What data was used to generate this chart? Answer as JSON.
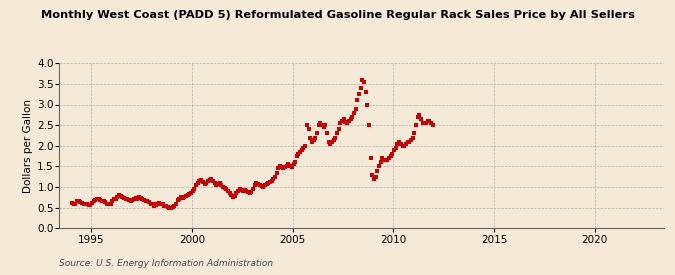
{
  "title": "Monthly West Coast (PADD 5) Reformulated Gasoline Regular Rack Sales Price by All Sellers",
  "ylabel": "Dollars per Gallon",
  "source": "Source: U.S. Energy Information Administration",
  "background_color": "#f5ead8",
  "dot_color": "#cc0000",
  "ylim": [
    0.0,
    4.0
  ],
  "yticks": [
    0.0,
    0.5,
    1.0,
    1.5,
    2.0,
    2.5,
    3.0,
    3.5,
    4.0
  ],
  "xticks": [
    1995,
    2000,
    2005,
    2010,
    2015,
    2020
  ],
  "data": [
    [
      1994,
      1,
      0.61
    ],
    [
      1994,
      2,
      0.58
    ],
    [
      1994,
      3,
      0.6
    ],
    [
      1994,
      4,
      0.65
    ],
    [
      1994,
      5,
      0.67
    ],
    [
      1994,
      6,
      0.64
    ],
    [
      1994,
      7,
      0.62
    ],
    [
      1994,
      8,
      0.6
    ],
    [
      1994,
      9,
      0.59
    ],
    [
      1994,
      10,
      0.58
    ],
    [
      1994,
      11,
      0.57
    ],
    [
      1994,
      12,
      0.56
    ],
    [
      1995,
      1,
      0.62
    ],
    [
      1995,
      2,
      0.65
    ],
    [
      1995,
      3,
      0.68
    ],
    [
      1995,
      4,
      0.72
    ],
    [
      1995,
      5,
      0.7
    ],
    [
      1995,
      6,
      0.68
    ],
    [
      1995,
      7,
      0.67
    ],
    [
      1995,
      8,
      0.65
    ],
    [
      1995,
      9,
      0.63
    ],
    [
      1995,
      10,
      0.6
    ],
    [
      1995,
      11,
      0.59
    ],
    [
      1995,
      12,
      0.58
    ],
    [
      1996,
      1,
      0.65
    ],
    [
      1996,
      2,
      0.7
    ],
    [
      1996,
      3,
      0.72
    ],
    [
      1996,
      4,
      0.75
    ],
    [
      1996,
      5,
      0.8
    ],
    [
      1996,
      6,
      0.78
    ],
    [
      1996,
      7,
      0.75
    ],
    [
      1996,
      8,
      0.73
    ],
    [
      1996,
      9,
      0.72
    ],
    [
      1996,
      10,
      0.7
    ],
    [
      1996,
      11,
      0.68
    ],
    [
      1996,
      12,
      0.65
    ],
    [
      1997,
      1,
      0.68
    ],
    [
      1997,
      2,
      0.7
    ],
    [
      1997,
      3,
      0.73
    ],
    [
      1997,
      4,
      0.72
    ],
    [
      1997,
      5,
      0.75
    ],
    [
      1997,
      6,
      0.73
    ],
    [
      1997,
      7,
      0.7
    ],
    [
      1997,
      8,
      0.68
    ],
    [
      1997,
      9,
      0.67
    ],
    [
      1997,
      10,
      0.65
    ],
    [
      1997,
      11,
      0.63
    ],
    [
      1997,
      12,
      0.6
    ],
    [
      1998,
      1,
      0.58
    ],
    [
      1998,
      2,
      0.55
    ],
    [
      1998,
      3,
      0.57
    ],
    [
      1998,
      4,
      0.6
    ],
    [
      1998,
      5,
      0.62
    ],
    [
      1998,
      6,
      0.6
    ],
    [
      1998,
      7,
      0.58
    ],
    [
      1998,
      8,
      0.55
    ],
    [
      1998,
      9,
      0.53
    ],
    [
      1998,
      10,
      0.51
    ],
    [
      1998,
      11,
      0.5
    ],
    [
      1998,
      12,
      0.49
    ],
    [
      1999,
      1,
      0.52
    ],
    [
      1999,
      2,
      0.55
    ],
    [
      1999,
      3,
      0.6
    ],
    [
      1999,
      4,
      0.68
    ],
    [
      1999,
      5,
      0.72
    ],
    [
      1999,
      6,
      0.75
    ],
    [
      1999,
      7,
      0.73
    ],
    [
      1999,
      8,
      0.75
    ],
    [
      1999,
      9,
      0.78
    ],
    [
      1999,
      10,
      0.8
    ],
    [
      1999,
      11,
      0.82
    ],
    [
      1999,
      12,
      0.85
    ],
    [
      2000,
      1,
      0.9
    ],
    [
      2000,
      2,
      0.95
    ],
    [
      2000,
      3,
      1.05
    ],
    [
      2000,
      4,
      1.1
    ],
    [
      2000,
      5,
      1.15
    ],
    [
      2000,
      6,
      1.18
    ],
    [
      2000,
      7,
      1.12
    ],
    [
      2000,
      8,
      1.08
    ],
    [
      2000,
      9,
      1.1
    ],
    [
      2000,
      10,
      1.15
    ],
    [
      2000,
      11,
      1.18
    ],
    [
      2000,
      12,
      1.2
    ],
    [
      2001,
      1,
      1.15
    ],
    [
      2001,
      2,
      1.1
    ],
    [
      2001,
      3,
      1.05
    ],
    [
      2001,
      4,
      1.08
    ],
    [
      2001,
      5,
      1.1
    ],
    [
      2001,
      6,
      1.05
    ],
    [
      2001,
      7,
      1.0
    ],
    [
      2001,
      8,
      0.98
    ],
    [
      2001,
      9,
      0.95
    ],
    [
      2001,
      10,
      0.9
    ],
    [
      2001,
      11,
      0.85
    ],
    [
      2001,
      12,
      0.8
    ],
    [
      2002,
      1,
      0.75
    ],
    [
      2002,
      2,
      0.78
    ],
    [
      2002,
      3,
      0.85
    ],
    [
      2002,
      4,
      0.9
    ],
    [
      2002,
      5,
      0.95
    ],
    [
      2002,
      6,
      0.92
    ],
    [
      2002,
      7,
      0.9
    ],
    [
      2002,
      8,
      0.92
    ],
    [
      2002,
      9,
      0.9
    ],
    [
      2002,
      10,
      0.88
    ],
    [
      2002,
      11,
      0.85
    ],
    [
      2002,
      12,
      0.88
    ],
    [
      2003,
      1,
      0.95
    ],
    [
      2003,
      2,
      1.05
    ],
    [
      2003,
      3,
      1.1
    ],
    [
      2003,
      4,
      1.08
    ],
    [
      2003,
      5,
      1.05
    ],
    [
      2003,
      6,
      1.02
    ],
    [
      2003,
      7,
      1.0
    ],
    [
      2003,
      8,
      1.05
    ],
    [
      2003,
      9,
      1.08
    ],
    [
      2003,
      10,
      1.1
    ],
    [
      2003,
      11,
      1.12
    ],
    [
      2003,
      12,
      1.15
    ],
    [
      2004,
      1,
      1.2
    ],
    [
      2004,
      2,
      1.25
    ],
    [
      2004,
      3,
      1.35
    ],
    [
      2004,
      4,
      1.45
    ],
    [
      2004,
      5,
      1.5
    ],
    [
      2004,
      6,
      1.48
    ],
    [
      2004,
      7,
      1.45
    ],
    [
      2004,
      8,
      1.48
    ],
    [
      2004,
      9,
      1.52
    ],
    [
      2004,
      10,
      1.55
    ],
    [
      2004,
      11,
      1.5
    ],
    [
      2004,
      12,
      1.48
    ],
    [
      2005,
      1,
      1.55
    ],
    [
      2005,
      2,
      1.6
    ],
    [
      2005,
      3,
      1.75
    ],
    [
      2005,
      4,
      1.8
    ],
    [
      2005,
      5,
      1.85
    ],
    [
      2005,
      6,
      1.9
    ],
    [
      2005,
      7,
      1.95
    ],
    [
      2005,
      8,
      2.0
    ],
    [
      2005,
      9,
      2.5
    ],
    [
      2005,
      10,
      2.4
    ],
    [
      2005,
      11,
      2.2
    ],
    [
      2005,
      12,
      2.1
    ],
    [
      2006,
      1,
      2.15
    ],
    [
      2006,
      2,
      2.2
    ],
    [
      2006,
      3,
      2.3
    ],
    [
      2006,
      4,
      2.5
    ],
    [
      2006,
      5,
      2.55
    ],
    [
      2006,
      6,
      2.5
    ],
    [
      2006,
      7,
      2.45
    ],
    [
      2006,
      8,
      2.5
    ],
    [
      2006,
      9,
      2.3
    ],
    [
      2006,
      10,
      2.1
    ],
    [
      2006,
      11,
      2.05
    ],
    [
      2006,
      12,
      2.1
    ],
    [
      2007,
      1,
      2.15
    ],
    [
      2007,
      2,
      2.2
    ],
    [
      2007,
      3,
      2.3
    ],
    [
      2007,
      4,
      2.4
    ],
    [
      2007,
      5,
      2.55
    ],
    [
      2007,
      6,
      2.6
    ],
    [
      2007,
      7,
      2.65
    ],
    [
      2007,
      8,
      2.58
    ],
    [
      2007,
      9,
      2.55
    ],
    [
      2007,
      10,
      2.6
    ],
    [
      2007,
      11,
      2.65
    ],
    [
      2007,
      12,
      2.7
    ],
    [
      2008,
      1,
      2.8
    ],
    [
      2008,
      2,
      2.9
    ],
    [
      2008,
      3,
      3.1
    ],
    [
      2008,
      4,
      3.25
    ],
    [
      2008,
      5,
      3.4
    ],
    [
      2008,
      6,
      3.6
    ],
    [
      2008,
      7,
      3.55
    ],
    [
      2008,
      8,
      3.3
    ],
    [
      2008,
      9,
      3.0
    ],
    [
      2008,
      10,
      2.5
    ],
    [
      2008,
      11,
      1.7
    ],
    [
      2008,
      12,
      1.3
    ],
    [
      2009,
      1,
      1.2
    ],
    [
      2009,
      2,
      1.25
    ],
    [
      2009,
      3,
      1.4
    ],
    [
      2009,
      4,
      1.5
    ],
    [
      2009,
      5,
      1.6
    ],
    [
      2009,
      6,
      1.7
    ],
    [
      2009,
      7,
      1.65
    ],
    [
      2009,
      8,
      1.65
    ],
    [
      2009,
      9,
      1.65
    ],
    [
      2009,
      10,
      1.7
    ],
    [
      2009,
      11,
      1.75
    ],
    [
      2009,
      12,
      1.8
    ],
    [
      2010,
      1,
      1.9
    ],
    [
      2010,
      2,
      1.95
    ],
    [
      2010,
      3,
      2.05
    ],
    [
      2010,
      4,
      2.1
    ],
    [
      2010,
      5,
      2.05
    ],
    [
      2010,
      6,
      2.0
    ],
    [
      2010,
      7,
      2.0
    ],
    [
      2010,
      8,
      2.05
    ],
    [
      2010,
      9,
      2.08
    ],
    [
      2010,
      10,
      2.1
    ],
    [
      2010,
      11,
      2.15
    ],
    [
      2010,
      12,
      2.2
    ],
    [
      2011,
      1,
      2.3
    ],
    [
      2011,
      2,
      2.5
    ],
    [
      2011,
      3,
      2.7
    ],
    [
      2011,
      4,
      2.75
    ],
    [
      2011,
      5,
      2.65
    ],
    [
      2011,
      6,
      2.55
    ],
    [
      2011,
      7,
      2.55
    ],
    [
      2011,
      8,
      2.55
    ],
    [
      2011,
      9,
      2.6
    ],
    [
      2011,
      10,
      2.6
    ],
    [
      2011,
      11,
      2.55
    ],
    [
      2011,
      12,
      2.5
    ]
  ]
}
